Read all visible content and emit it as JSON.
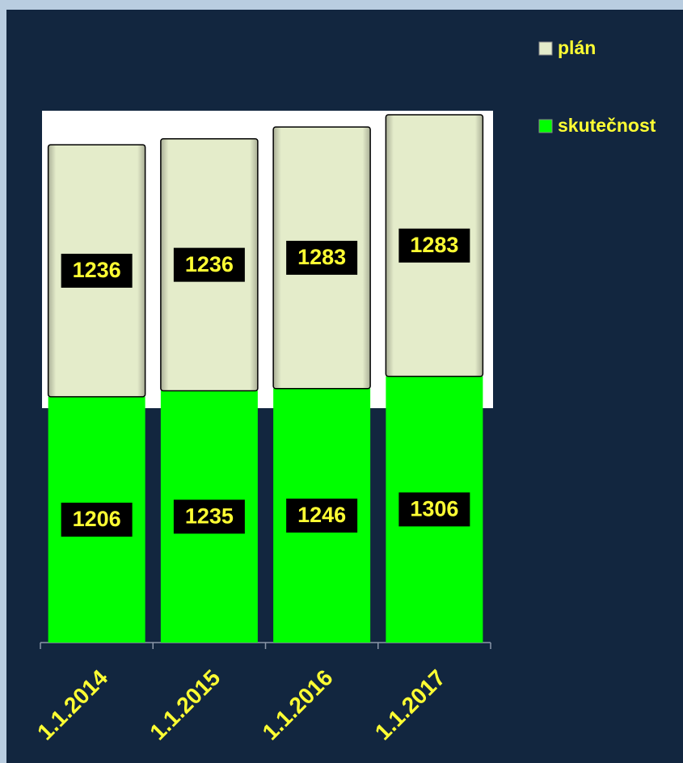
{
  "chart_data": {
    "type": "stacked_bar",
    "categories": [
      "1.1.2014",
      "1.1.2015",
      "1.1.2016",
      "1.1.2017"
    ],
    "series": [
      {
        "name": "skutečnost",
        "color": "#00ff00",
        "values": [
          1206,
          1235,
          1246,
          1306
        ]
      },
      {
        "name": "plán",
        "color": "#e4ecca",
        "values": [
          1236,
          1236,
          1283,
          1283
        ]
      }
    ],
    "legend": "right"
  }
}
